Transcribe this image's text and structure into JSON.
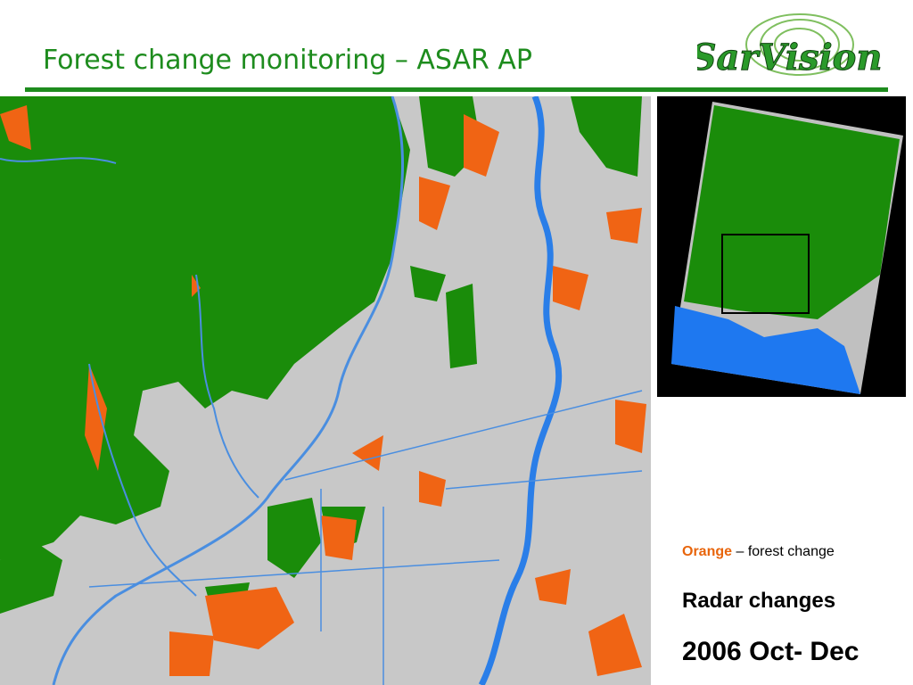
{
  "title": "Forest change monitoring – ASAR AP",
  "logo": "SarVision",
  "legend": {
    "key": "Orange",
    "text": "– forest change"
  },
  "caption": "Radar changes",
  "period": "2006 Oct- Dec"
}
